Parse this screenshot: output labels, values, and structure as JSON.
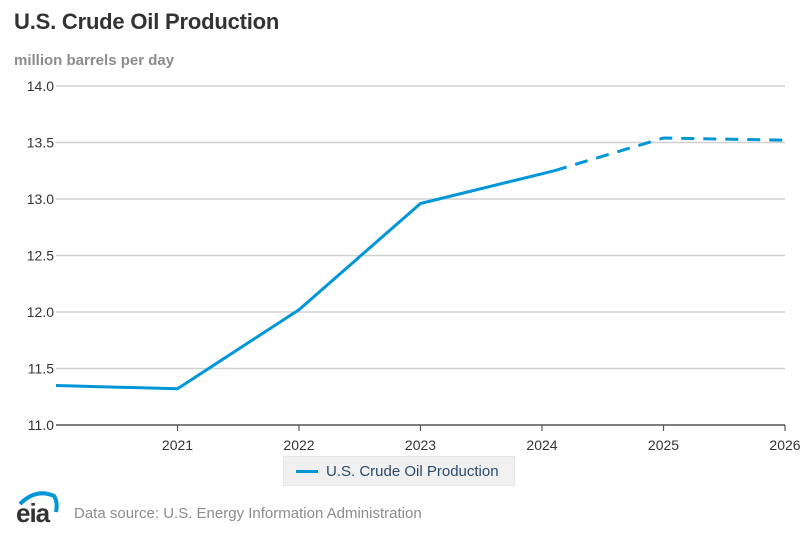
{
  "header": {
    "title": "U.S. Crude Oil Production",
    "units": "million barrels per day"
  },
  "legend": {
    "items": [
      {
        "label": "U.S. Crude Oil Production",
        "color": "#0096d7"
      }
    ]
  },
  "footer": {
    "logo_text": "eia",
    "source": "Data source: U.S. Energy Information Administration"
  },
  "colors": {
    "series": "#0096d7",
    "grid": "#d0d0d0",
    "axis": "#555555",
    "tick_text": "#333333"
  },
  "chart_data": {
    "type": "line",
    "title": "U.S. Crude Oil Production",
    "xlabel": "",
    "ylabel": "million barrels per day",
    "xlim": [
      2020,
      2026
    ],
    "ylim": [
      11.0,
      14.0
    ],
    "grid": true,
    "legend_position": "bottom-center",
    "x_ticks": [
      2021,
      2022,
      2023,
      2024,
      2025,
      2026
    ],
    "y_ticks": [
      "11.0",
      "11.5",
      "12.0",
      "12.5",
      "13.0",
      "13.5",
      "14.0"
    ],
    "series": [
      {
        "name": "U.S. Crude Oil Production",
        "segment": "historical",
        "style": "solid",
        "x": [
          2020.0,
          2021,
          2022,
          2023,
          2024.1
        ],
        "values": [
          11.35,
          11.32,
          12.02,
          12.96,
          13.25
        ]
      },
      {
        "name": "U.S. Crude Oil Production",
        "segment": "forecast",
        "style": "dashed",
        "x": [
          2024.1,
          2025,
          2026
        ],
        "values": [
          13.25,
          13.54,
          13.52
        ]
      }
    ]
  }
}
